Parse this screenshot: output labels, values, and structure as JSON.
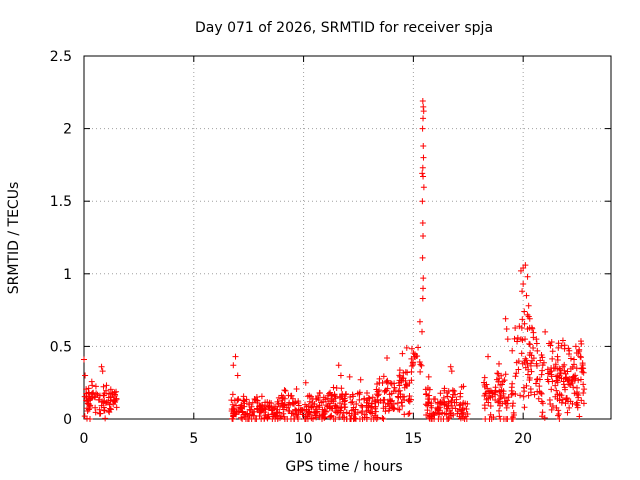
{
  "chart_data": {
    "type": "scatter",
    "title": "Day 071 of 2026, SRMTID for receiver spja",
    "xlabel": "GPS time / hours",
    "ylabel": "SRMTID / TECUs",
    "xlim": [
      0,
      24
    ],
    "ylim": [
      0,
      2.5
    ],
    "xticks": [
      0,
      5,
      10,
      15,
      20
    ],
    "xtick_labels": [
      "0",
      "5",
      "10",
      "15",
      "20"
    ],
    "yticks": [
      0,
      0.5,
      1,
      1.5,
      2,
      2.5
    ],
    "ytick_labels": [
      "0",
      "0.5",
      "1",
      "1.5",
      "2",
      "2.5"
    ],
    "grid": true,
    "marker": "+",
    "series": [
      {
        "name": "SRMTID",
        "color": "#ff0000",
        "segments": [
          {
            "x_start": 0.0,
            "x_end": 1.5,
            "base": 0.12,
            "spread": 0.14,
            "density": 60,
            "spikes": [
              [
                0.0,
                0.41
              ],
              [
                0.05,
                0.3
              ],
              [
                0.8,
                0.36
              ],
              [
                0.85,
                0.33
              ]
            ]
          },
          {
            "x_start": 6.7,
            "x_end": 9.0,
            "base": 0.06,
            "spread": 0.12,
            "density": 60,
            "spikes": [
              [
                6.9,
                0.43
              ],
              [
                7.0,
                0.3
              ],
              [
                6.8,
                0.37
              ]
            ]
          },
          {
            "x_start": 9.0,
            "x_end": 13.3,
            "base": 0.08,
            "spread": 0.14,
            "density": 60,
            "spikes": [
              [
                10.1,
                0.25
              ],
              [
                11.6,
                0.37
              ],
              [
                11.7,
                0.3
              ],
              [
                12.1,
                0.29
              ],
              [
                12.6,
                0.27
              ]
            ]
          },
          {
            "x_start": 13.3,
            "x_end": 14.9,
            "base": 0.16,
            "spread": 0.2,
            "density": 60,
            "spikes": [
              [
                13.8,
                0.42
              ],
              [
                14.5,
                0.45
              ],
              [
                14.7,
                0.49
              ]
            ]
          },
          {
            "x_start": 14.9,
            "x_end": 15.4,
            "base": 0.45,
            "spread": 0.2,
            "density": 40,
            "spikes": [
              [
                15.3,
                0.67
              ]
            ]
          },
          {
            "x_start": 15.4,
            "x_end": 15.5,
            "base": 1.6,
            "spread": 0.55,
            "density": 20,
            "spikes": [
              [
                15.43,
                2.19
              ],
              [
                15.45,
                2.15
              ],
              [
                15.47,
                2.12
              ],
              [
                15.44,
                2.07
              ],
              [
                15.42,
                2.0
              ],
              [
                15.45,
                1.88
              ],
              [
                15.46,
                1.8
              ],
              [
                15.43,
                1.73
              ],
              [
                15.44,
                1.67
              ],
              [
                15.41,
                1.5
              ],
              [
                15.43,
                1.35
              ],
              [
                15.44,
                1.26
              ],
              [
                15.42,
                1.11
              ],
              [
                15.45,
                0.97
              ],
              [
                15.44,
                0.9
              ],
              [
                15.43,
                0.83
              ]
            ]
          },
          {
            "x_start": 15.5,
            "x_end": 17.5,
            "base": 0.09,
            "spread": 0.17,
            "density": 60,
            "spikes": [
              [
                15.7,
                0.29
              ],
              [
                16.7,
                0.36
              ],
              [
                16.75,
                0.33
              ],
              [
                17.2,
                0.22
              ]
            ]
          },
          {
            "x_start": 18.2,
            "x_end": 19.6,
            "base": 0.16,
            "spread": 0.22,
            "density": 60,
            "spikes": [
              [
                18.4,
                0.43
              ],
              [
                18.9,
                0.38
              ],
              [
                19.2,
                0.69
              ],
              [
                19.25,
                0.62
              ],
              [
                19.3,
                0.55
              ],
              [
                19.5,
                0.47
              ]
            ]
          },
          {
            "x_start": 19.6,
            "x_end": 20.5,
            "base": 0.4,
            "spread": 0.35,
            "density": 60,
            "spikes": [
              [
                19.9,
                1.02
              ],
              [
                20.0,
                1.04
              ],
              [
                20.1,
                1.06
              ],
              [
                20.2,
                0.98
              ],
              [
                20.0,
                0.93
              ],
              [
                19.95,
                0.88
              ],
              [
                20.15,
                0.85
              ],
              [
                20.25,
                0.78
              ],
              [
                20.05,
                0.74
              ],
              [
                20.3,
                0.69
              ],
              [
                20.2,
                0.62
              ],
              [
                19.9,
                0.55
              ]
            ]
          },
          {
            "x_start": 20.5,
            "x_end": 22.8,
            "base": 0.27,
            "spread": 0.3,
            "density": 70,
            "spikes": [
              [
                20.6,
                0.55
              ],
              [
                21.0,
                0.6
              ],
              [
                21.3,
                0.53
              ],
              [
                21.6,
                0.49
              ],
              [
                22.1,
                0.47
              ],
              [
                22.4,
                0.5
              ],
              [
                22.6,
                0.43
              ]
            ]
          }
        ]
      }
    ]
  }
}
